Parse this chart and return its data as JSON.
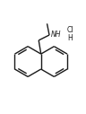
{
  "bg_color": "#ffffff",
  "line_color": "#1a1a1a",
  "text_color": "#1a1a1a",
  "bond_lw": 1.0,
  "font_size": 5.5,
  "hcl_font_size": 5.5,
  "figsize": [
    0.96,
    1.27
  ],
  "dpi": 100,
  "xlim": [
    -1.8,
    3.8
  ],
  "ylim": [
    -2.2,
    2.8
  ]
}
